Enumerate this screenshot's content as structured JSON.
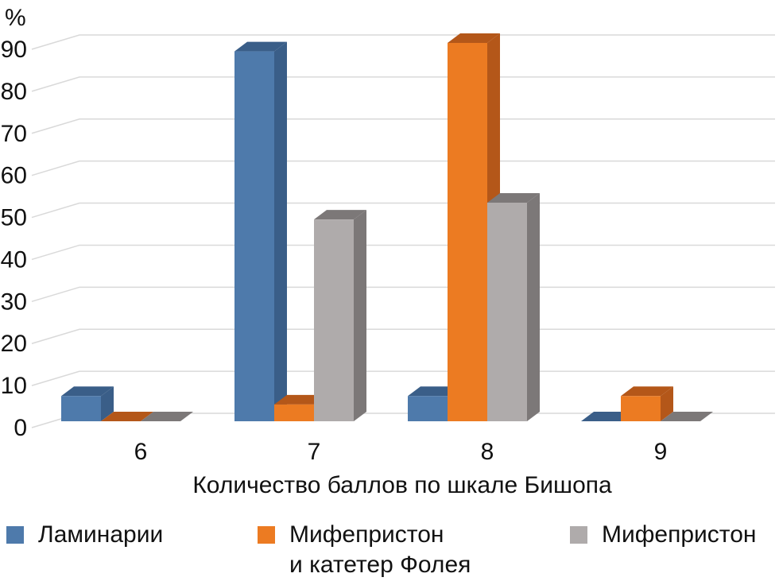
{
  "chart_data": {
    "type": "bar",
    "style": "3d-clustered",
    "ylabel": "%",
    "xlabel": "Количество баллов по шкале Бишопа",
    "ylim": [
      0,
      90
    ],
    "yticks": [
      0,
      10,
      20,
      30,
      40,
      50,
      60,
      70,
      80,
      90
    ],
    "categories": [
      "6",
      "7",
      "8",
      "9"
    ],
    "series": [
      {
        "name": "Ламинарии",
        "values": [
          6,
          88,
          6,
          0
        ],
        "color": "#4e7aab",
        "shade": "#3a5e88"
      },
      {
        "name": "Мифепристон\nи катетер Фолея",
        "values": [
          0,
          4,
          90,
          6
        ],
        "color": "#ec7b22",
        "shade": "#b45719"
      },
      {
        "name": "Мифепристон",
        "values": [
          0,
          48,
          52,
          0
        ],
        "color": "#afabab",
        "shade": "#7c7878"
      }
    ],
    "grid": true,
    "legend_position": "bottom"
  }
}
